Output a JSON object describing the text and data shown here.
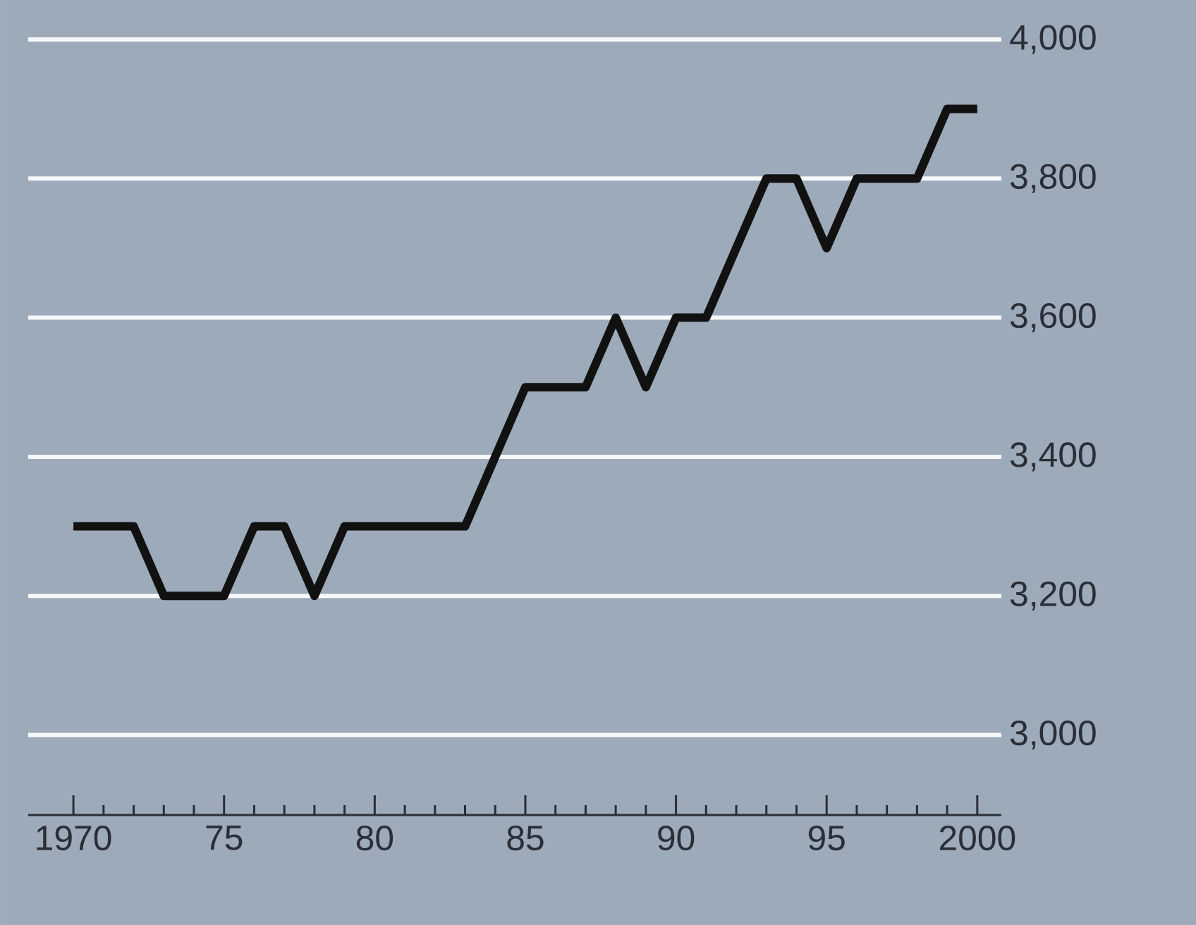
{
  "chart_data": {
    "type": "line",
    "x": [
      1970,
      1972,
      1973,
      1975,
      1976,
      1977,
      1978,
      1979,
      1983,
      1985,
      1987,
      1988,
      1989,
      1990,
      1991,
      1993,
      1994,
      1995,
      1996,
      1998,
      1999,
      2000
    ],
    "values": [
      3300,
      3300,
      3200,
      3200,
      3300,
      3300,
      3200,
      3300,
      3300,
      3500,
      3500,
      3600,
      3500,
      3600,
      3600,
      3800,
      3800,
      3700,
      3800,
      3800,
      3900,
      3900
    ],
    "color": "#111111",
    "line_style": "solid",
    "marker": "none",
    "grid": "y",
    "xlim": [
      1968.5,
      2000.8
    ],
    "ylim": [
      2885,
      4000
    ],
    "xticks": [
      {
        "value": 1970,
        "label": "1970"
      },
      {
        "value": 1975,
        "label": "75"
      },
      {
        "value": 1980,
        "label": "80"
      },
      {
        "value": 1985,
        "label": "85"
      },
      {
        "value": 1990,
        "label": "90"
      },
      {
        "value": 1995,
        "label": "95"
      },
      {
        "value": 2000,
        "label": "2000"
      }
    ],
    "yticks": [
      {
        "value": 3000,
        "label": "3,000"
      },
      {
        "value": 3200,
        "label": "3,200"
      },
      {
        "value": 3400,
        "label": "3,400"
      },
      {
        "value": 3600,
        "label": "3,600"
      },
      {
        "value": 3800,
        "label": "3,800"
      },
      {
        "value": 4000,
        "label": "4,000"
      }
    ]
  }
}
